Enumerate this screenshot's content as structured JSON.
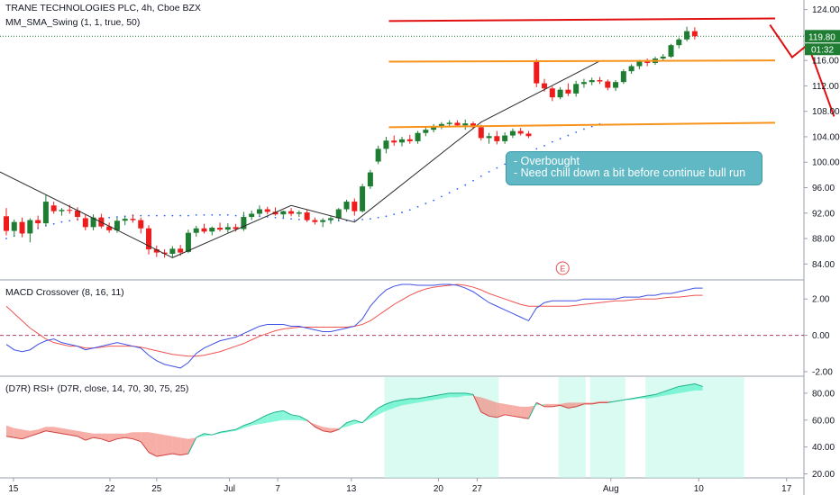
{
  "header": {
    "symbol_title": "TRANE TECHNOLOGIES PLC, 4h, Cboe BZX",
    "indicator": "MM_SMA_Swing (1, 1, true, 50)"
  },
  "panes": {
    "macd_title": "MACD Crossover (8, 16, 11)",
    "rsi_title": "(D7R) RSI+ (D7R, close, 14, 70, 30, 75, 25)"
  },
  "price_tags": {
    "last_price": "119.80",
    "countdown": "01:32"
  },
  "earnings_marker": "E",
  "annotation": {
    "lines": [
      "- Overbought",
      "- Need chill down a bit before continue bull run"
    ]
  },
  "colors": {
    "up": "#1e7d32",
    "down": "#ee1c1c",
    "resistance": "#e01010",
    "support": "#f7931a",
    "sma": "#2962ff",
    "macd_line": "#3f51e6",
    "signal_line": "#ef5350",
    "rsi_band_up": "#56f2c8",
    "rsi_band_down": "#f28b82"
  },
  "chart_data": [
    {
      "type": "candlestick",
      "title": "TRANE TECHNOLOGIES PLC, 4h, Cboe BZX",
      "x_tick_labels": [
        "15",
        "22",
        "25",
        "Jul",
        "7",
        "13",
        "20",
        "27",
        "Aug",
        "10",
        "17"
      ],
      "y_ticks": [
        84,
        88,
        92,
        96,
        100,
        104,
        108,
        112,
        116,
        120,
        124
      ],
      "ylim": [
        81.5,
        125.5
      ],
      "candles": [
        {
          "o": 91.5,
          "h": 92.8,
          "l": 88.5,
          "c": 89.2
        },
        {
          "o": 89.2,
          "h": 91.0,
          "l": 88.3,
          "c": 90.6
        },
        {
          "o": 90.6,
          "h": 91.3,
          "l": 88.2,
          "c": 88.8
        },
        {
          "o": 88.8,
          "h": 91.2,
          "l": 87.4,
          "c": 90.9
        },
        {
          "o": 90.9,
          "h": 91.6,
          "l": 89.6,
          "c": 90.4
        },
        {
          "o": 90.4,
          "h": 94.8,
          "l": 90.0,
          "c": 93.8
        },
        {
          "o": 93.2,
          "h": 93.8,
          "l": 91.9,
          "c": 92.3
        },
        {
          "o": 92.3,
          "h": 92.8,
          "l": 91.6,
          "c": 92.5
        },
        {
          "o": 92.5,
          "h": 93.3,
          "l": 91.9,
          "c": 92.4
        },
        {
          "o": 92.4,
          "h": 92.9,
          "l": 90.8,
          "c": 91.4
        },
        {
          "o": 91.2,
          "h": 91.8,
          "l": 89.3,
          "c": 89.8
        },
        {
          "o": 89.8,
          "h": 91.8,
          "l": 89.3,
          "c": 91.3
        },
        {
          "o": 91.3,
          "h": 91.9,
          "l": 89.6,
          "c": 89.9
        },
        {
          "o": 89.9,
          "h": 90.5,
          "l": 88.9,
          "c": 89.3
        },
        {
          "o": 89.3,
          "h": 91.3,
          "l": 88.9,
          "c": 90.8
        },
        {
          "o": 90.8,
          "h": 91.5,
          "l": 90.1,
          "c": 91.1
        },
        {
          "o": 91.1,
          "h": 91.8,
          "l": 90.5,
          "c": 90.9
        },
        {
          "o": 90.9,
          "h": 91.3,
          "l": 88.8,
          "c": 89.6
        },
        {
          "o": 89.6,
          "h": 90.1,
          "l": 85.5,
          "c": 86.3
        },
        {
          "o": 86.3,
          "h": 86.9,
          "l": 85.1,
          "c": 85.8
        },
        {
          "o": 85.8,
          "h": 86.3,
          "l": 85.0,
          "c": 85.6
        },
        {
          "o": 85.6,
          "h": 86.8,
          "l": 85.1,
          "c": 86.4
        },
        {
          "o": 86.4,
          "h": 87.0,
          "l": 85.3,
          "c": 85.8
        },
        {
          "o": 85.9,
          "h": 89.4,
          "l": 85.7,
          "c": 88.9
        },
        {
          "o": 88.9,
          "h": 90.0,
          "l": 88.3,
          "c": 89.6
        },
        {
          "o": 89.6,
          "h": 90.3,
          "l": 88.8,
          "c": 89.1
        },
        {
          "o": 89.1,
          "h": 89.9,
          "l": 88.5,
          "c": 89.7
        },
        {
          "o": 89.7,
          "h": 90.5,
          "l": 89.1,
          "c": 89.4
        },
        {
          "o": 89.4,
          "h": 90.4,
          "l": 88.9,
          "c": 89.8
        },
        {
          "o": 89.8,
          "h": 90.3,
          "l": 89.1,
          "c": 89.5
        },
        {
          "o": 89.5,
          "h": 92.2,
          "l": 89.2,
          "c": 91.4
        },
        {
          "o": 91.4,
          "h": 92.4,
          "l": 90.9,
          "c": 91.9
        },
        {
          "o": 91.9,
          "h": 93.2,
          "l": 91.6,
          "c": 92.6
        },
        {
          "o": 92.6,
          "h": 93.0,
          "l": 91.8,
          "c": 92.2
        },
        {
          "o": 92.2,
          "h": 92.9,
          "l": 91.6,
          "c": 91.8
        },
        {
          "o": 91.8,
          "h": 92.4,
          "l": 91.3,
          "c": 92.3
        },
        {
          "o": 92.3,
          "h": 92.8,
          "l": 91.5,
          "c": 91.9
        },
        {
          "o": 91.9,
          "h": 92.4,
          "l": 91.4,
          "c": 92.1
        },
        {
          "o": 92.1,
          "h": 92.6,
          "l": 90.6,
          "c": 90.9
        },
        {
          "o": 90.9,
          "h": 91.3,
          "l": 90.2,
          "c": 90.6
        },
        {
          "o": 90.6,
          "h": 91.2,
          "l": 89.8,
          "c": 90.9
        },
        {
          "o": 90.9,
          "h": 91.5,
          "l": 90.3,
          "c": 91.2
        },
        {
          "o": 91.2,
          "h": 92.8,
          "l": 90.8,
          "c": 92.6
        },
        {
          "o": 92.6,
          "h": 94.1,
          "l": 92.2,
          "c": 93.8
        },
        {
          "o": 93.8,
          "h": 94.3,
          "l": 91.6,
          "c": 92.3
        },
        {
          "o": 92.3,
          "h": 96.6,
          "l": 92.1,
          "c": 96.2
        },
        {
          "o": 96.2,
          "h": 98.8,
          "l": 95.8,
          "c": 98.4
        },
        {
          "o": 100.1,
          "h": 102.6,
          "l": 99.7,
          "c": 102.1
        },
        {
          "o": 102.1,
          "h": 104.0,
          "l": 101.4,
          "c": 103.4
        },
        {
          "o": 103.4,
          "h": 104.2,
          "l": 102.6,
          "c": 103.1
        },
        {
          "o": 103.1,
          "h": 104.0,
          "l": 102.5,
          "c": 103.6
        },
        {
          "o": 103.6,
          "h": 104.3,
          "l": 102.9,
          "c": 103.3
        },
        {
          "o": 103.3,
          "h": 104.9,
          "l": 102.9,
          "c": 104.6
        },
        {
          "o": 104.6,
          "h": 105.6,
          "l": 104.1,
          "c": 105.1
        },
        {
          "o": 105.1,
          "h": 106.0,
          "l": 104.7,
          "c": 105.6
        },
        {
          "o": 105.6,
          "h": 106.3,
          "l": 105.2,
          "c": 106.0
        },
        {
          "o": 106.0,
          "h": 106.6,
          "l": 105.5,
          "c": 106.2
        },
        {
          "o": 106.2,
          "h": 106.6,
          "l": 105.6,
          "c": 105.8
        },
        {
          "o": 105.8,
          "h": 106.7,
          "l": 105.1,
          "c": 106.1
        },
        {
          "o": 106.1,
          "h": 106.4,
          "l": 105.2,
          "c": 105.5
        },
        {
          "o": 105.5,
          "h": 105.9,
          "l": 103.4,
          "c": 103.8
        },
        {
          "o": 103.8,
          "h": 104.6,
          "l": 102.9,
          "c": 104.1
        },
        {
          "o": 104.1,
          "h": 104.9,
          "l": 102.8,
          "c": 103.3
        },
        {
          "o": 103.3,
          "h": 104.7,
          "l": 102.9,
          "c": 104.2
        },
        {
          "o": 104.2,
          "h": 105.3,
          "l": 103.8,
          "c": 104.9
        },
        {
          "o": 104.9,
          "h": 105.4,
          "l": 104.2,
          "c": 104.5
        },
        {
          "o": 104.5,
          "h": 104.9,
          "l": 103.8,
          "c": 104.1
        },
        {
          "o": 115.8,
          "h": 116.2,
          "l": 111.8,
          "c": 112.4
        },
        {
          "o": 112.4,
          "h": 113.1,
          "l": 111.1,
          "c": 111.6
        },
        {
          "o": 111.6,
          "h": 111.9,
          "l": 109.6,
          "c": 110.2
        },
        {
          "o": 110.2,
          "h": 111.8,
          "l": 109.9,
          "c": 111.4
        },
        {
          "o": 111.4,
          "h": 112.4,
          "l": 110.4,
          "c": 110.8
        },
        {
          "o": 110.8,
          "h": 112.8,
          "l": 110.3,
          "c": 112.3
        },
        {
          "o": 112.3,
          "h": 113.1,
          "l": 111.7,
          "c": 112.6
        },
        {
          "o": 112.6,
          "h": 113.3,
          "l": 112.1,
          "c": 112.9
        },
        {
          "o": 112.9,
          "h": 113.4,
          "l": 112.3,
          "c": 112.7
        },
        {
          "o": 112.7,
          "h": 113.0,
          "l": 111.3,
          "c": 111.7
        },
        {
          "o": 111.7,
          "h": 112.9,
          "l": 111.2,
          "c": 112.6
        },
        {
          "o": 112.6,
          "h": 114.6,
          "l": 112.3,
          "c": 114.3
        },
        {
          "o": 114.3,
          "h": 115.4,
          "l": 113.9,
          "c": 115.1
        },
        {
          "o": 115.1,
          "h": 116.1,
          "l": 114.6,
          "c": 115.9
        },
        {
          "o": 115.9,
          "h": 116.3,
          "l": 115.1,
          "c": 115.6
        },
        {
          "o": 115.6,
          "h": 116.6,
          "l": 115.3,
          "c": 116.3
        },
        {
          "o": 116.3,
          "h": 117.0,
          "l": 115.9,
          "c": 116.6
        },
        {
          "o": 116.6,
          "h": 118.6,
          "l": 116.4,
          "c": 118.4
        },
        {
          "o": 118.4,
          "h": 119.6,
          "l": 117.9,
          "c": 119.3
        },
        {
          "o": 119.3,
          "h": 121.3,
          "l": 119.0,
          "c": 120.6
        },
        {
          "o": 120.6,
          "h": 121.2,
          "l": 119.3,
          "c": 119.8
        }
      ],
      "sma_dotted": [
        88.0,
        88.4,
        88.8,
        89.2,
        89.6,
        90.0,
        90.3,
        90.6,
        90.8,
        91.0,
        91.1,
        91.2,
        91.3,
        91.3,
        91.4,
        91.5,
        91.6,
        91.6,
        91.6,
        91.6,
        91.6,
        91.6,
        91.6,
        91.6,
        91.7,
        91.7,
        91.7,
        91.7,
        91.7,
        91.6,
        91.6,
        91.6,
        91.5,
        91.4,
        91.3,
        91.2,
        91.1,
        91.0,
        90.9,
        90.8,
        90.8,
        90.8,
        90.8,
        90.8,
        90.9,
        91.0,
        91.1,
        91.3,
        91.5,
        91.8,
        92.1,
        92.5,
        93.0,
        93.5,
        94.0,
        94.6,
        95.2,
        95.8,
        96.4,
        97.1,
        97.8,
        98.5,
        99.1,
        99.7,
        100.3,
        100.9,
        101.5,
        102.1,
        102.6,
        103.2,
        103.7,
        104.2,
        104.7,
        105.2,
        105.6,
        106.0
      ],
      "swing_line": [
        {
          "i": -1,
          "v": 98.6
        },
        {
          "i": 21,
          "v": 85.0
        },
        {
          "i": 36,
          "v": 93.2
        },
        {
          "i": 44,
          "v": 90.6
        },
        {
          "i": 60,
          "v": 106.3
        },
        {
          "i": 75,
          "v": 115.9
        }
      ],
      "resistance_line": {
        "i0": 48,
        "i1": 98,
        "v0": 122.2,
        "v1": 122.6
      },
      "support_upper": {
        "i0": 48,
        "i1": 105,
        "v0": 115.8,
        "v1": 116.0
      },
      "support_lower": {
        "i0": 48,
        "i1": 105,
        "v0": 105.5,
        "v1": 106.2
      },
      "projection": [
        {
          "i": 96.5,
          "v": 121.6
        },
        {
          "i": 99.3,
          "v": 116.5
        },
        {
          "i": 101.3,
          "v": 118.5
        },
        {
          "i": 104.6,
          "v": 107.2
        }
      ],
      "last_price": 119.8
    },
    {
      "type": "line",
      "title": "MACD Crossover (8, 16, 11)",
      "y_ticks": [
        2.0,
        0.0,
        -2.0
      ],
      "ylim": [
        -2.25,
        3.0
      ],
      "zero_line": 0.0,
      "macd": [
        -0.5,
        -0.8,
        -0.9,
        -0.8,
        -0.5,
        -0.3,
        -0.2,
        -0.4,
        -0.5,
        -0.6,
        -0.8,
        -0.7,
        -0.6,
        -0.5,
        -0.4,
        -0.5,
        -0.6,
        -0.7,
        -1.1,
        -1.4,
        -1.6,
        -1.7,
        -1.8,
        -1.5,
        -1.0,
        -0.7,
        -0.5,
        -0.3,
        -0.2,
        -0.1,
        0.1,
        0.3,
        0.5,
        0.6,
        0.6,
        0.6,
        0.5,
        0.5,
        0.4,
        0.3,
        0.2,
        0.2,
        0.3,
        0.4,
        0.5,
        0.9,
        1.6,
        2.1,
        2.5,
        2.7,
        2.8,
        2.8,
        2.75,
        2.75,
        2.75,
        2.8,
        2.8,
        2.75,
        2.6,
        2.4,
        2.1,
        1.8,
        1.6,
        1.4,
        1.2,
        1.0,
        0.8,
        1.5,
        1.8,
        1.9,
        1.9,
        1.9,
        1.9,
        2.0,
        2.0,
        2.0,
        2.0,
        2.0,
        2.1,
        2.1,
        2.1,
        2.2,
        2.2,
        2.3,
        2.3,
        2.4,
        2.5,
        2.6,
        2.6
      ],
      "signal": [
        1.6,
        1.2,
        0.8,
        0.4,
        0.1,
        -0.2,
        -0.4,
        -0.5,
        -0.6,
        -0.6,
        -0.7,
        -0.7,
        -0.65,
        -0.6,
        -0.6,
        -0.6,
        -0.6,
        -0.65,
        -0.75,
        -0.85,
        -0.95,
        -1.05,
        -1.1,
        -1.15,
        -1.15,
        -1.1,
        -1.0,
        -0.9,
        -0.75,
        -0.6,
        -0.45,
        -0.25,
        -0.05,
        0.1,
        0.25,
        0.35,
        0.4,
        0.45,
        0.45,
        0.45,
        0.45,
        0.45,
        0.45,
        0.45,
        0.5,
        0.6,
        0.8,
        1.1,
        1.4,
        1.7,
        1.95,
        2.2,
        2.4,
        2.55,
        2.65,
        2.7,
        2.75,
        2.8,
        2.75,
        2.65,
        2.5,
        2.3,
        2.15,
        2.0,
        1.85,
        1.7,
        1.6,
        1.6,
        1.6,
        1.6,
        1.6,
        1.6,
        1.65,
        1.7,
        1.75,
        1.8,
        1.85,
        1.9,
        1.9,
        1.95,
        2.0,
        2.0,
        2.0,
        2.05,
        2.1,
        2.1,
        2.15,
        2.2,
        2.2
      ]
    },
    {
      "type": "area",
      "title": "(D7R) RSI+ (D7R, close, 14, 70, 30, 75, 25)",
      "y_ticks": [
        80.0,
        60.0,
        40.0,
        20.0
      ],
      "ylim": [
        17,
        92
      ],
      "rsi": [
        48,
        47,
        46,
        48,
        50,
        52,
        51,
        50,
        49,
        48,
        45,
        47,
        46,
        44,
        46,
        47,
        46,
        44,
        36,
        33,
        34,
        35,
        34,
        35,
        47,
        50,
        49,
        51,
        52,
        53,
        56,
        58,
        61,
        64,
        66,
        67,
        64,
        63,
        60,
        55,
        52,
        51,
        53,
        58,
        60,
        58,
        64,
        69,
        72,
        74,
        75,
        76,
        76,
        77,
        78,
        79,
        80,
        80,
        80,
        79,
        66,
        63,
        62,
        64,
        63,
        62,
        61,
        73,
        70,
        70,
        71,
        69,
        70,
        72,
        72,
        73,
        73,
        74,
        75,
        76,
        77,
        78,
        79,
        81,
        83,
        85,
        86,
        87,
        85
      ],
      "band": [
        56,
        54,
        53,
        52,
        53,
        55,
        55,
        54,
        53,
        52,
        51,
        50,
        50,
        50,
        50,
        50,
        51,
        51,
        51,
        50,
        49,
        48,
        47,
        46,
        47,
        48,
        49,
        50,
        51,
        52,
        54,
        56,
        57,
        58,
        59,
        60,
        60,
        60,
        59,
        57,
        55,
        54,
        54,
        55,
        57,
        58,
        61,
        64,
        67,
        69,
        71,
        72,
        73,
        74,
        75,
        76,
        77,
        77,
        78,
        78,
        77,
        75,
        73,
        72,
        71,
        70,
        70,
        71,
        72,
        72,
        72,
        73,
        73,
        73,
        73,
        74,
        74,
        74,
        75,
        75,
        76,
        76,
        77,
        78,
        79,
        80,
        81,
        82,
        82
      ],
      "highlight_ranges": [
        [
          48,
          62
        ],
        [
          70,
          73
        ],
        [
          74,
          78
        ],
        [
          81,
          93
        ]
      ]
    }
  ]
}
